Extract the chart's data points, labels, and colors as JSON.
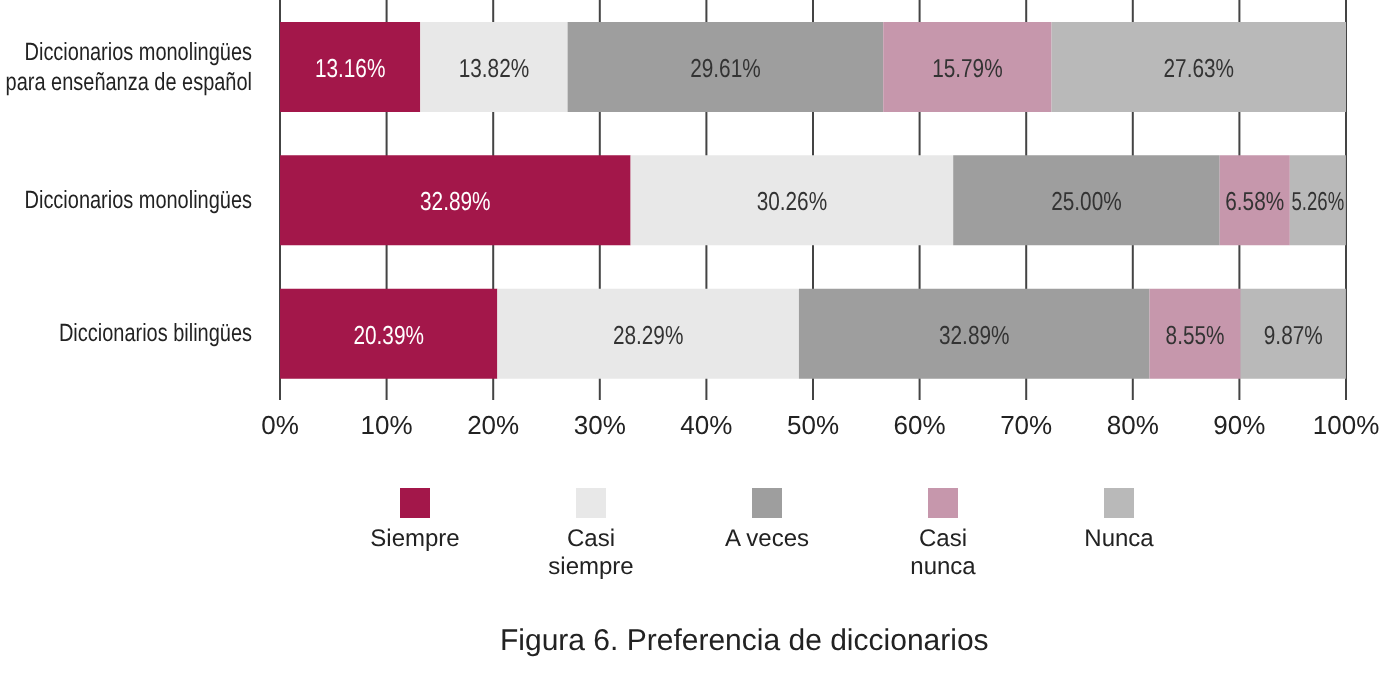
{
  "chart_data": {
    "type": "bar",
    "orientation": "horizontal",
    "stacked": true,
    "title": "Figura 6. Preferencia de diccionarios",
    "categories": [
      "Diccionarios monolingües para enseñanza de español",
      "Diccionarios monolingües",
      "Diccionarios bilingües"
    ],
    "series": [
      {
        "name": "Siempre",
        "color": "#a3174a",
        "values": [
          13.16,
          32.89,
          20.39
        ],
        "value_labels": [
          "13.16%",
          "32.89%",
          "20.39%"
        ]
      },
      {
        "name": "Casi siempre",
        "color": "#e8e8e8",
        "values": [
          13.82,
          30.26,
          28.29
        ],
        "value_labels": [
          "13.82%",
          "30.26%",
          "28.29%"
        ]
      },
      {
        "name": "A veces",
        "color": "#9e9e9e",
        "values": [
          29.61,
          25.0,
          32.89
        ],
        "value_labels": [
          "29.61%",
          "25.00%",
          "32.89%"
        ]
      },
      {
        "name": "Casi nunca",
        "color": "#c697ac",
        "values": [
          15.79,
          6.58,
          8.55
        ],
        "value_labels": [
          "15.79%",
          "6.58%",
          "8.55%"
        ]
      },
      {
        "name": "Nunca",
        "color": "#b9b9b9",
        "values": [
          27.63,
          5.26,
          9.87
        ],
        "value_labels": [
          "27.63%",
          "5.26%",
          "9.87%"
        ]
      }
    ],
    "xlim": [
      0,
      100
    ],
    "xticks": [
      {
        "value": 0,
        "label": "0%"
      },
      {
        "value": 10,
        "label": "10%"
      },
      {
        "value": 20,
        "label": "20%"
      },
      {
        "value": 30,
        "label": "30%"
      },
      {
        "value": 40,
        "label": "40%"
      },
      {
        "value": 50,
        "label": "50%"
      },
      {
        "value": 60,
        "label": "60%"
      },
      {
        "value": 70,
        "label": "70%"
      },
      {
        "value": 80,
        "label": "80%"
      },
      {
        "value": 90,
        "label": "90%"
      },
      {
        "value": 100,
        "label": "100%"
      }
    ],
    "grid": "x",
    "legend": "bottom"
  }
}
